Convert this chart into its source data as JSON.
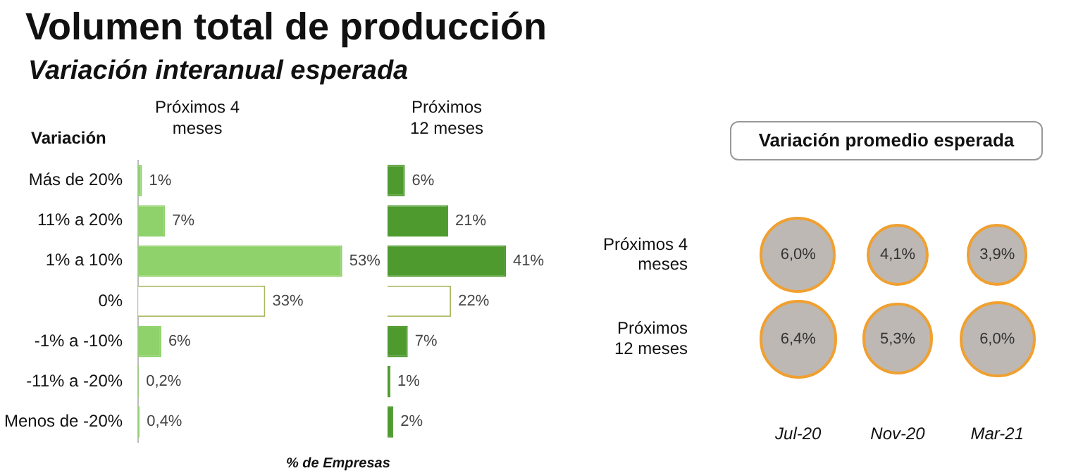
{
  "chart_data": [
    {
      "type": "bar",
      "orientation": "horizontal",
      "title": "Volumen total de producción",
      "subtitle": "Variación interanual esperada",
      "ylabel": "Variación",
      "categories": [
        "Más de 20%",
        "11% a 20%",
        "1% a 10%",
        "0%",
        "-1% a -10%",
        "-11% a -20%",
        "Menos de -20%"
      ],
      "series": [
        {
          "name": "Próximos 4 meses",
          "colors": [
            "#8fd16a",
            "#8fd16a",
            "#8fd16a",
            "#ffffff",
            "#8fd16a",
            "#8fd16a",
            "#8fd16a"
          ],
          "values": [
            1,
            7,
            53,
            33,
            6,
            0.2,
            0.4
          ],
          "value_labels": [
            "1%",
            "7%",
            "53%",
            "33%",
            "6%",
            "0,2%",
            "0,4%"
          ]
        }
      ],
      "tick_labels": "y",
      "legend": false
    },
    {
      "type": "bar",
      "orientation": "horizontal",
      "xlabel": "% de Empresas",
      "categories": [
        null,
        null,
        null,
        null,
        null,
        null,
        null
      ],
      "series": [
        {
          "name": "Próximos 12 meses",
          "colors": [
            "#4e9a2e",
            "#4e9a2e",
            "#4e9a2e",
            "#ffffff",
            "#4e9a2e",
            "#4e9a2e",
            "#4e9a2e"
          ],
          "values": [
            6,
            21,
            41,
            22,
            7,
            1,
            2
          ],
          "value_labels": [
            "6%",
            "21%",
            "41%",
            "22%",
            "7%",
            "1%",
            "2%"
          ]
        }
      ],
      "tick_labels": false,
      "legend": false
    },
    {
      "type": "heatmap",
      "title": "Variación promedio esperada",
      "categories": [
        "Jul-20",
        "Nov-20",
        "Mar-21"
      ],
      "y_categories": [
        "Próximos 4 meses",
        "Próximos 12 meses"
      ],
      "color": "#bdb8b4",
      "cells": [
        [
          6.0,
          4.1,
          3.9
        ],
        [
          6.4,
          5.3,
          6.0
        ]
      ],
      "cell_labels": [
        [
          "6,0%",
          "4,1%",
          "3,9%"
        ],
        [
          "6,4%",
          "5,3%",
          "6,0%"
        ]
      ]
    }
  ]
}
